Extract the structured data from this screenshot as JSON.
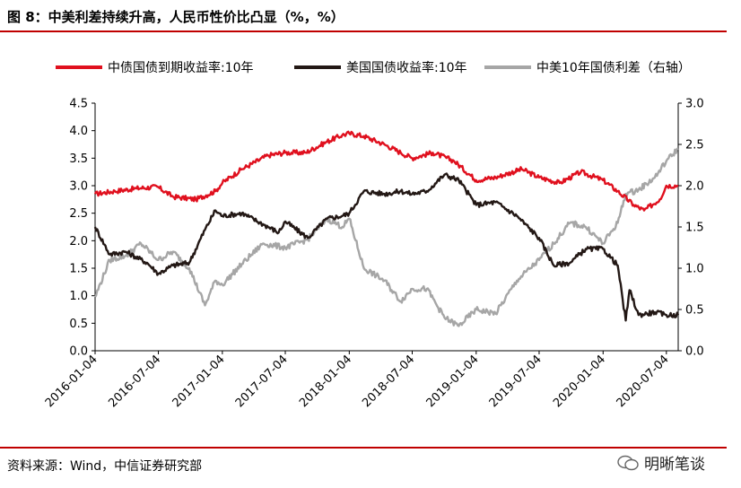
{
  "title": "图 8：中美利差持续升高，人民币性价比凸显（%，%）",
  "source": "资料来源：Wind，中信证券研究部",
  "watermark": "明晰笔谈",
  "colors": {
    "accent": "#c00000",
    "cn_yield": "#e0101e",
    "us_yield": "#231815",
    "spread": "#a6a6a6"
  },
  "chart_data": {
    "type": "line",
    "x_tick_labels": [
      "2016-01-04",
      "2016-07-04",
      "2017-01-04",
      "2017-07-04",
      "2018-01-04",
      "2018-07-04",
      "2019-01-04",
      "2019-07-04",
      "2020-01-04",
      "2020-07-04"
    ],
    "x_range": [
      "2016-01-04",
      "2020-08-07"
    ],
    "y_left": {
      "ylim": [
        0,
        4.5
      ],
      "ticks": [
        "0.0",
        "0.5",
        "1.0",
        "1.5",
        "2.0",
        "2.5",
        "3.0",
        "3.5",
        "4.0",
        "4.5"
      ]
    },
    "y_right": {
      "ylim": [
        0,
        3.0
      ],
      "ticks": [
        "0.0",
        "0.5",
        "1.0",
        "1.5",
        "2.0",
        "2.5",
        "3.0"
      ]
    },
    "legend_position": "top",
    "series": [
      {
        "name": "中债国债到期收益率:10年",
        "axis": "left",
        "color": "#e0101e",
        "x": [
          "2016-01-04",
          "2016-03-01",
          "2016-05-02",
          "2016-07-01",
          "2016-08-15",
          "2016-10-20",
          "2016-12-15",
          "2017-01-04",
          "2017-03-01",
          "2017-05-15",
          "2017-07-04",
          "2017-09-01",
          "2017-11-01",
          "2017-12-15",
          "2018-01-04",
          "2018-02-15",
          "2018-04-15",
          "2018-06-01",
          "2018-07-04",
          "2018-09-01",
          "2018-11-01",
          "2019-01-04",
          "2019-03-01",
          "2019-05-15",
          "2019-07-04",
          "2019-09-01",
          "2019-11-01",
          "2020-01-04",
          "2020-02-15",
          "2020-04-01",
          "2020-05-01",
          "2020-06-15",
          "2020-07-04",
          "2020-08-07"
        ],
        "y": [
          2.85,
          2.9,
          2.95,
          2.98,
          2.8,
          2.75,
          2.9,
          3.05,
          3.3,
          3.55,
          3.6,
          3.6,
          3.8,
          3.92,
          3.95,
          3.9,
          3.75,
          3.6,
          3.5,
          3.6,
          3.45,
          3.1,
          3.15,
          3.3,
          3.15,
          3.05,
          3.25,
          3.1,
          2.9,
          2.65,
          2.55,
          2.75,
          3.0,
          3.0
        ]
      },
      {
        "name": "美国国债收益率:10年",
        "axis": "left",
        "color": "#231815",
        "x": [
          "2016-01-04",
          "2016-02-15",
          "2016-04-01",
          "2016-06-01",
          "2016-07-04",
          "2016-08-15",
          "2016-10-01",
          "2016-11-15",
          "2016-12-15",
          "2017-01-04",
          "2017-03-01",
          "2017-05-01",
          "2017-06-15",
          "2017-07-04",
          "2017-09-07",
          "2017-11-01",
          "2017-12-15",
          "2018-01-04",
          "2018-02-15",
          "2018-04-15",
          "2018-06-01",
          "2018-07-04",
          "2018-08-15",
          "2018-10-05",
          "2018-11-15",
          "2019-01-04",
          "2019-03-01",
          "2019-05-01",
          "2019-07-04",
          "2019-08-15",
          "2019-10-01",
          "2019-11-15",
          "2020-01-04",
          "2020-02-15",
          "2020-03-09",
          "2020-03-20",
          "2020-04-15",
          "2020-06-01",
          "2020-07-04",
          "2020-08-07"
        ],
        "y": [
          2.25,
          1.75,
          1.8,
          1.6,
          1.4,
          1.55,
          1.6,
          2.2,
          2.55,
          2.45,
          2.5,
          2.3,
          2.15,
          2.35,
          2.05,
          2.4,
          2.45,
          2.5,
          2.9,
          2.85,
          2.9,
          2.85,
          2.9,
          3.2,
          3.1,
          2.65,
          2.7,
          2.45,
          2.05,
          1.55,
          1.6,
          1.85,
          1.85,
          1.55,
          0.55,
          1.1,
          0.65,
          0.7,
          0.65,
          0.65
        ]
      },
      {
        "name": "中美10年国债利差（右轴）",
        "axis": "right",
        "color": "#a6a6a6",
        "x": [
          "2016-01-04",
          "2016-02-15",
          "2016-04-01",
          "2016-05-15",
          "2016-07-04",
          "2016-08-15",
          "2016-10-01",
          "2016-11-15",
          "2016-12-15",
          "2017-01-04",
          "2017-03-01",
          "2017-05-01",
          "2017-07-04",
          "2017-09-07",
          "2017-11-01",
          "2017-12-15",
          "2018-01-04",
          "2018-02-15",
          "2018-04-15",
          "2018-06-01",
          "2018-07-04",
          "2018-08-15",
          "2018-10-05",
          "2018-11-15",
          "2019-01-04",
          "2019-03-01",
          "2019-05-01",
          "2019-07-04",
          "2019-08-15",
          "2019-10-01",
          "2019-11-15",
          "2020-01-04",
          "2020-02-15",
          "2020-03-09",
          "2020-04-15",
          "2020-06-01",
          "2020-07-04",
          "2020-08-07"
        ],
        "y": [
          0.65,
          1.1,
          1.15,
          1.3,
          1.1,
          1.2,
          1.0,
          0.55,
          0.85,
          0.8,
          1.05,
          1.3,
          1.25,
          1.35,
          1.6,
          1.5,
          1.6,
          1.0,
          0.85,
          0.6,
          0.75,
          0.75,
          0.4,
          0.3,
          0.5,
          0.45,
          0.85,
          1.1,
          1.3,
          1.55,
          1.5,
          1.3,
          1.55,
          1.9,
          1.95,
          2.1,
          2.3,
          2.45
        ]
      }
    ]
  }
}
